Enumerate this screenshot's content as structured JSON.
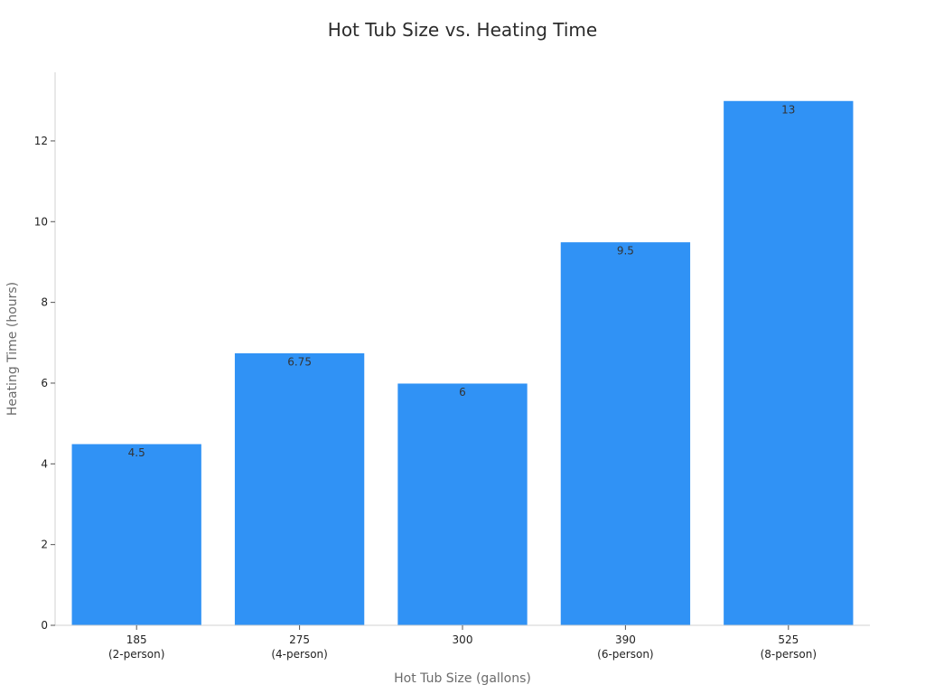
{
  "chart_data": {
    "type": "bar",
    "title": "Hot Tub Size vs. Heating Time",
    "xlabel": "Hot Tub Size (gallons)",
    "ylabel": "Heating Time (hours)",
    "categories": [
      [
        "185",
        "(2-person)"
      ],
      [
        "275",
        "(4-person)"
      ],
      [
        "300"
      ],
      [
        "390",
        "(6-person)"
      ],
      [
        "525",
        "(8-person)"
      ]
    ],
    "values": [
      4.5,
      6.75,
      6,
      9.5,
      13
    ],
    "data_labels": [
      "4.5",
      "6.75",
      "6",
      "9.5",
      "13"
    ],
    "yticks": [
      0,
      2,
      4,
      6,
      8,
      10,
      12
    ],
    "ylim": [
      0,
      13.7
    ],
    "bar_color": "#3092f5",
    "grid": false,
    "legend": "none"
  }
}
